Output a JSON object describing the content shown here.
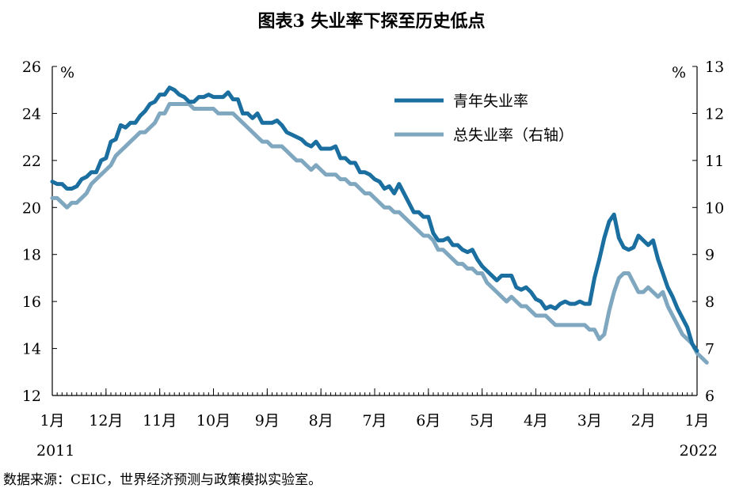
{
  "chart_data": {
    "type": "line",
    "title": "图表3 失业率下探至历史低点",
    "source": "数据来源：CEIC，世界经济预测与政策模拟实验室。",
    "left_unit": "%",
    "right_unit": "%",
    "ylim_left": [
      12,
      26
    ],
    "ylim_right": [
      6,
      13
    ],
    "yticks_left": [
      "12",
      "14",
      "16",
      "18",
      "20",
      "22",
      "24",
      "26"
    ],
    "yticks_right": [
      "6",
      "7",
      "8",
      "9",
      "10",
      "11",
      "12",
      "13"
    ],
    "x_ticks": [
      {
        "label": "1月",
        "year": "2011"
      },
      {
        "label": "12月",
        "year": ""
      },
      {
        "label": "11月",
        "year": ""
      },
      {
        "label": "10月",
        "year": ""
      },
      {
        "label": "9月",
        "year": ""
      },
      {
        "label": "8月",
        "year": ""
      },
      {
        "label": "7月",
        "year": ""
      },
      {
        "label": "6月",
        "year": ""
      },
      {
        "label": "5月",
        "year": ""
      },
      {
        "label": "4月",
        "year": ""
      },
      {
        "label": "3月",
        "year": ""
      },
      {
        "label": "2月",
        "year": ""
      },
      {
        "label": "1月",
        "year": "2022"
      }
    ],
    "legend_position": "top-right",
    "series": [
      {
        "name": "青年失业率",
        "axis": "left",
        "color": "#1a6fa0",
        "values": [
          21.1,
          21.0,
          21.0,
          20.8,
          20.8,
          20.9,
          21.2,
          21.3,
          21.5,
          21.5,
          22.0,
          22.1,
          22.8,
          22.9,
          23.5,
          23.4,
          23.6,
          23.6,
          23.9,
          24.1,
          24.4,
          24.5,
          24.8,
          24.8,
          25.1,
          25.0,
          24.8,
          24.7,
          24.5,
          24.5,
          24.7,
          24.7,
          24.8,
          24.7,
          24.7,
          24.7,
          24.9,
          24.6,
          24.6,
          24.0,
          24.0,
          23.8,
          24.0,
          23.6,
          23.6,
          23.6,
          23.7,
          23.5,
          23.2,
          23.1,
          23.0,
          22.9,
          22.7,
          22.6,
          22.8,
          22.5,
          22.5,
          22.5,
          22.6,
          22.1,
          22.1,
          21.9,
          21.9,
          21.5,
          21.5,
          21.4,
          21.2,
          21.1,
          20.8,
          20.9,
          20.6,
          21.0,
          20.6,
          20.2,
          19.8,
          19.8,
          19.6,
          19.6,
          18.9,
          18.6,
          18.6,
          18.7,
          18.4,
          18.4,
          18.2,
          18.1,
          18.2,
          17.8,
          17.5,
          17.3,
          17.1,
          16.9,
          17.1,
          17.1,
          17.1,
          16.6,
          16.5,
          16.6,
          16.4,
          16.1,
          16.0,
          15.7,
          15.8,
          15.7,
          15.9,
          16.0,
          15.9,
          15.9,
          16.0,
          15.9,
          15.9,
          17.0,
          17.8,
          18.7,
          19.4,
          19.7,
          18.7,
          18.3,
          18.2,
          18.3,
          18.8,
          18.6,
          18.4,
          18.6,
          17.8,
          17.2,
          16.6,
          16.2,
          15.7,
          15.3,
          14.9,
          14.2,
          13.9
        ]
      },
      {
        "name": "总失业率（右轴）",
        "axis": "right",
        "color": "#7fa7bf",
        "values": [
          10.2,
          10.2,
          10.1,
          10.0,
          10.1,
          10.1,
          10.2,
          10.3,
          10.5,
          10.6,
          10.7,
          10.8,
          10.9,
          11.1,
          11.2,
          11.3,
          11.4,
          11.5,
          11.6,
          11.6,
          11.7,
          11.8,
          12.0,
          12.0,
          12.2,
          12.2,
          12.2,
          12.2,
          12.2,
          12.1,
          12.1,
          12.1,
          12.1,
          12.1,
          12.0,
          12.0,
          12.0,
          12.0,
          11.9,
          11.8,
          11.7,
          11.6,
          11.5,
          11.4,
          11.4,
          11.3,
          11.3,
          11.3,
          11.2,
          11.1,
          11.0,
          11.0,
          10.9,
          10.8,
          10.9,
          10.8,
          10.7,
          10.7,
          10.7,
          10.6,
          10.6,
          10.5,
          10.5,
          10.4,
          10.3,
          10.3,
          10.2,
          10.1,
          10.0,
          10.0,
          9.9,
          9.9,
          9.8,
          9.7,
          9.6,
          9.5,
          9.4,
          9.4,
          9.3,
          9.1,
          9.1,
          9.0,
          8.9,
          8.8,
          8.8,
          8.7,
          8.7,
          8.6,
          8.6,
          8.4,
          8.3,
          8.2,
          8.1,
          8.0,
          8.1,
          8.0,
          7.9,
          7.9,
          7.8,
          7.7,
          7.7,
          7.7,
          7.6,
          7.5,
          7.5,
          7.5,
          7.5,
          7.5,
          7.5,
          7.5,
          7.4,
          7.4,
          7.2,
          7.3,
          7.8,
          8.2,
          8.5,
          8.6,
          8.6,
          8.4,
          8.2,
          8.2,
          8.3,
          8.2,
          8.1,
          8.2,
          7.9,
          7.7,
          7.5,
          7.3,
          7.2,
          7.1,
          6.9,
          6.8,
          6.7
        ]
      }
    ]
  }
}
